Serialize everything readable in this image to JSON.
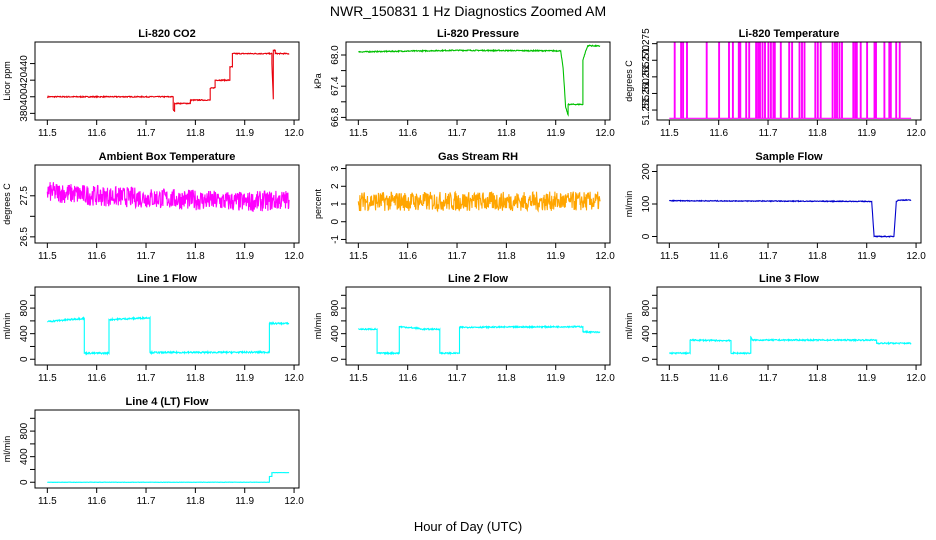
{
  "figure": {
    "title": "NWR_150831  1 Hz Diagnostics Zoomed AM",
    "xlabel": "Hour of Day (UTC)"
  },
  "chart_data": [
    {
      "type": "line",
      "title": "Li-820 CO2",
      "ylabel": "Licor ppm",
      "color": "#e8000b",
      "xlim": [
        11.475,
        12.01
      ],
      "ylim": [
        372,
        466
      ],
      "yticks": [
        380,
        400,
        420,
        440
      ],
      "xticks": [
        11.5,
        11.6,
        11.7,
        11.8,
        11.9,
        12.0
      ],
      "x": [
        11.5,
        11.62,
        11.755,
        11.755,
        11.758,
        11.758,
        11.79,
        11.79,
        11.83,
        11.83,
        11.84,
        11.84,
        11.87,
        11.87,
        11.875,
        11.875,
        11.955,
        11.955,
        11.958,
        11.958,
        11.962,
        11.962,
        11.99
      ],
      "y": [
        400,
        400,
        400,
        385,
        382,
        392,
        392,
        396,
        396,
        410,
        411,
        420,
        420,
        436,
        436,
        452,
        452,
        440,
        397,
        456,
        456,
        452,
        452
      ],
      "noise": 0.6
    },
    {
      "type": "line",
      "title": "Li-820 Pressure",
      "ylabel": "kPa",
      "color": "#00c000",
      "xlim": [
        11.475,
        12.01
      ],
      "ylim": [
        66.75,
        68.25
      ],
      "yticks": [
        66.8,
        67.4,
        68.0
      ],
      "ytick_labels": [
        "66.8",
        "67.4",
        "68.0"
      ],
      "yminor": [
        67.1,
        67.7
      ],
      "xticks": [
        11.5,
        11.6,
        11.7,
        11.8,
        11.9,
        12.0
      ],
      "x": [
        11.5,
        11.7,
        11.91,
        11.915,
        11.92,
        11.925,
        11.925,
        11.955,
        11.955,
        11.96,
        11.965,
        11.97,
        11.99
      ],
      "y": [
        68.06,
        68.09,
        68.08,
        67.75,
        67.0,
        66.85,
        67.05,
        67.05,
        67.9,
        68.05,
        68.18,
        68.18,
        68.17
      ],
      "noise": 0.01
    },
    {
      "type": "line",
      "title": "Li-820 Temperature",
      "ylabel": "degrees C",
      "color": "#ff00ff",
      "xlim": [
        11.475,
        12.01
      ],
      "ylim": [
        51.252,
        51.2755
      ],
      "yticks": [
        51.255,
        51.26,
        51.265,
        51.27,
        51.275
      ],
      "ytick_labels": [
        "51.255",
        "51.260",
        "51.265",
        "51.270",
        "51.275"
      ],
      "xticks": [
        11.5,
        11.6,
        11.7,
        11.8,
        11.9,
        12.0
      ],
      "low": 51.2525,
      "high": 51.2755,
      "spikes": [
        11.51,
        11.523,
        11.527,
        11.535,
        11.575,
        11.6,
        11.62,
        11.628,
        11.64,
        11.643,
        11.655,
        11.661,
        11.675,
        11.679,
        11.683,
        11.688,
        11.693,
        11.7,
        11.705,
        11.71,
        11.713,
        11.725,
        11.742,
        11.748,
        11.763,
        11.768,
        11.773,
        11.795,
        11.8,
        11.806,
        11.83,
        11.835,
        11.839,
        11.844,
        11.849,
        11.872,
        11.876,
        11.879,
        11.887,
        11.9,
        11.915,
        11.918,
        11.935,
        11.945,
        11.948,
        11.959,
        11.966
      ]
    },
    {
      "type": "line",
      "title": "Ambient Box Temperature",
      "ylabel": "degrees C",
      "color": "#ff00ff",
      "xlim": [
        11.475,
        12.01
      ],
      "ylim": [
        26.35,
        28.25
      ],
      "yticks": [
        26.5,
        27.5
      ],
      "ytick_labels": [
        "26.5",
        "27.5"
      ],
      "yminor": [
        27.0
      ],
      "xticks": [
        11.5,
        11.6,
        11.7,
        11.8,
        11.9,
        12.0
      ],
      "x": [
        11.5,
        11.6,
        11.7,
        11.8,
        11.9,
        11.99
      ],
      "y": [
        27.6,
        27.5,
        27.45,
        27.4,
        27.35,
        27.4
      ],
      "noise": 0.25
    },
    {
      "type": "line",
      "title": "Gas Stream RH",
      "ylabel": "percent",
      "color": "#ffa500",
      "xlim": [
        11.475,
        12.01
      ],
      "ylim": [
        -1.2,
        3.2
      ],
      "yticks": [
        -1,
        0,
        1,
        2,
        3
      ],
      "xticks": [
        11.5,
        11.6,
        11.7,
        11.8,
        11.9,
        12.0
      ],
      "x": [
        11.5,
        11.99
      ],
      "y": [
        1.15,
        1.15
      ],
      "noise": 0.55
    },
    {
      "type": "line",
      "title": "Sample Flow",
      "ylabel": "ml/min",
      "color": "#0000cd",
      "xlim": [
        11.475,
        12.01
      ],
      "ylim": [
        -20,
        220
      ],
      "yticks": [
        0,
        100,
        200
      ],
      "xticks": [
        11.5,
        11.6,
        11.7,
        11.8,
        11.9,
        12.0
      ],
      "x": [
        11.5,
        11.9,
        11.91,
        11.915,
        11.955,
        11.96,
        11.965,
        11.99
      ],
      "y": [
        110,
        108,
        108,
        0,
        0,
        108,
        112,
        112
      ],
      "noise": 1.2
    },
    {
      "type": "line",
      "title": "Line 1 Flow",
      "ylabel": "ml/min",
      "color": "#00ffff",
      "xlim": [
        11.475,
        12.01
      ],
      "ylim": [
        -90,
        1130
      ],
      "yticks": [
        0,
        200,
        400,
        600,
        800,
        1000
      ],
      "ytick_labels": [
        "0",
        "",
        "400",
        "",
        "800",
        ""
      ],
      "xticks": [
        11.5,
        11.6,
        11.7,
        11.8,
        11.9,
        12.0
      ],
      "x": [
        11.5,
        11.575,
        11.575,
        11.625,
        11.625,
        11.708,
        11.708,
        11.95,
        11.95,
        11.99
      ],
      "y": [
        590,
        640,
        95,
        95,
        620,
        650,
        105,
        110,
        560,
        560
      ],
      "noise": 12
    },
    {
      "type": "line",
      "title": "Line 2 Flow",
      "ylabel": "ml/min",
      "color": "#00ffff",
      "xlim": [
        11.475,
        12.01
      ],
      "ylim": [
        -90,
        1130
      ],
      "yticks": [
        0,
        200,
        400,
        600,
        800,
        1000
      ],
      "ytick_labels": [
        "0",
        "",
        "400",
        "",
        "800",
        ""
      ],
      "xticks": [
        11.5,
        11.6,
        11.7,
        11.8,
        11.9,
        12.0
      ],
      "x": [
        11.5,
        11.538,
        11.538,
        11.583,
        11.583,
        11.625,
        11.625,
        11.665,
        11.665,
        11.705,
        11.705,
        11.955,
        11.955,
        11.99
      ],
      "y": [
        470,
        470,
        95,
        95,
        510,
        480,
        470,
        470,
        95,
        95,
        500,
        510,
        430,
        420
      ],
      "noise": 10
    },
    {
      "type": "line",
      "title": "Line 3 Flow",
      "ylabel": "ml/min",
      "color": "#00ffff",
      "xlim": [
        11.475,
        12.01
      ],
      "ylim": [
        -90,
        1130
      ],
      "yticks": [
        0,
        200,
        400,
        600,
        800,
        1000
      ],
      "ytick_labels": [
        "0",
        "",
        "400",
        "",
        "800",
        ""
      ],
      "xticks": [
        11.5,
        11.6,
        11.7,
        11.8,
        11.9,
        12.0
      ],
      "x": [
        11.5,
        11.542,
        11.542,
        11.625,
        11.625,
        11.665,
        11.665,
        11.668,
        11.92,
        11.92,
        11.99
      ],
      "y": [
        95,
        95,
        300,
        290,
        95,
        95,
        350,
        300,
        300,
        250,
        250
      ],
      "noise": 10
    },
    {
      "type": "line",
      "title": "Line 4 (LT) Flow",
      "ylabel": "ml/min",
      "color": "#00ffff",
      "xlim": [
        11.475,
        12.01
      ],
      "ylim": [
        -90,
        1130
      ],
      "yticks": [
        0,
        200,
        400,
        600,
        800,
        1000
      ],
      "ytick_labels": [
        "0",
        "",
        "400",
        "",
        "800",
        ""
      ],
      "xticks": [
        11.5,
        11.6,
        11.7,
        11.8,
        11.9,
        12.0
      ],
      "x": [
        11.5,
        11.95,
        11.95,
        11.955,
        11.955,
        11.99
      ],
      "y": [
        0,
        0,
        90,
        90,
        150,
        150
      ],
      "noise": 2
    }
  ]
}
